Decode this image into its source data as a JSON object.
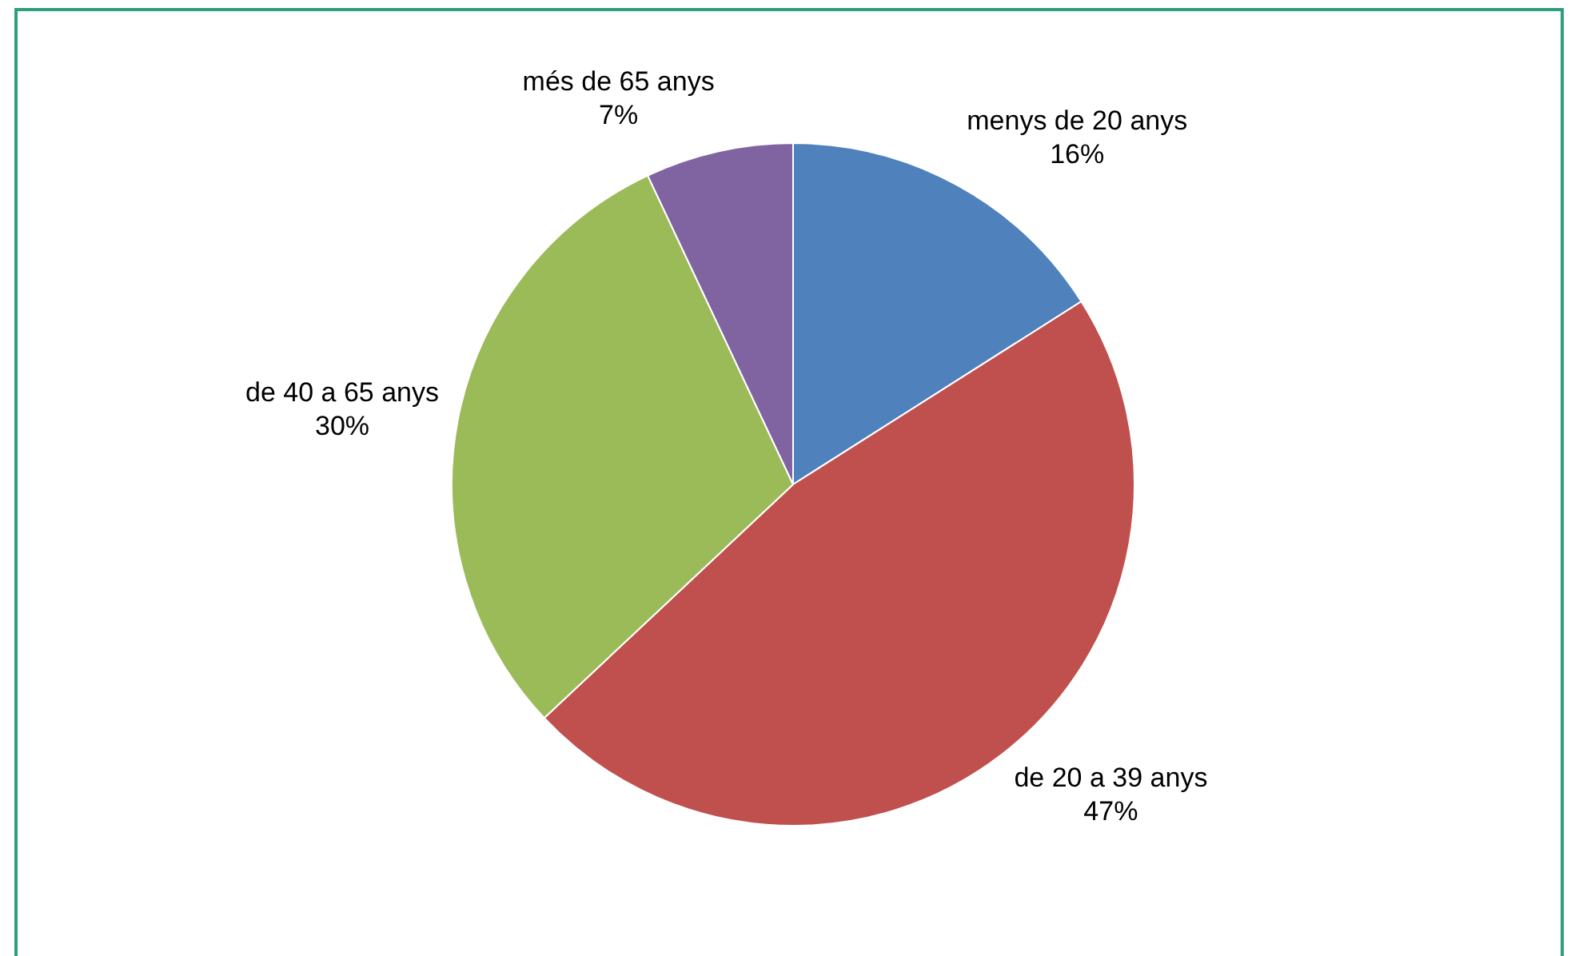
{
  "chart_data": {
    "type": "pie",
    "categories": [
      "menys de 20 anys",
      "de 20 a 39 anys",
      "de 40 a 65 anys",
      "més de 65 anys"
    ],
    "values": [
      16,
      47,
      30,
      7
    ],
    "value_labels": [
      "16%",
      "47%",
      "30%",
      "7%"
    ],
    "colors": [
      "#4f81bd",
      "#c0504d",
      "#9bbb59",
      "#8064a2"
    ],
    "legend": false
  }
}
